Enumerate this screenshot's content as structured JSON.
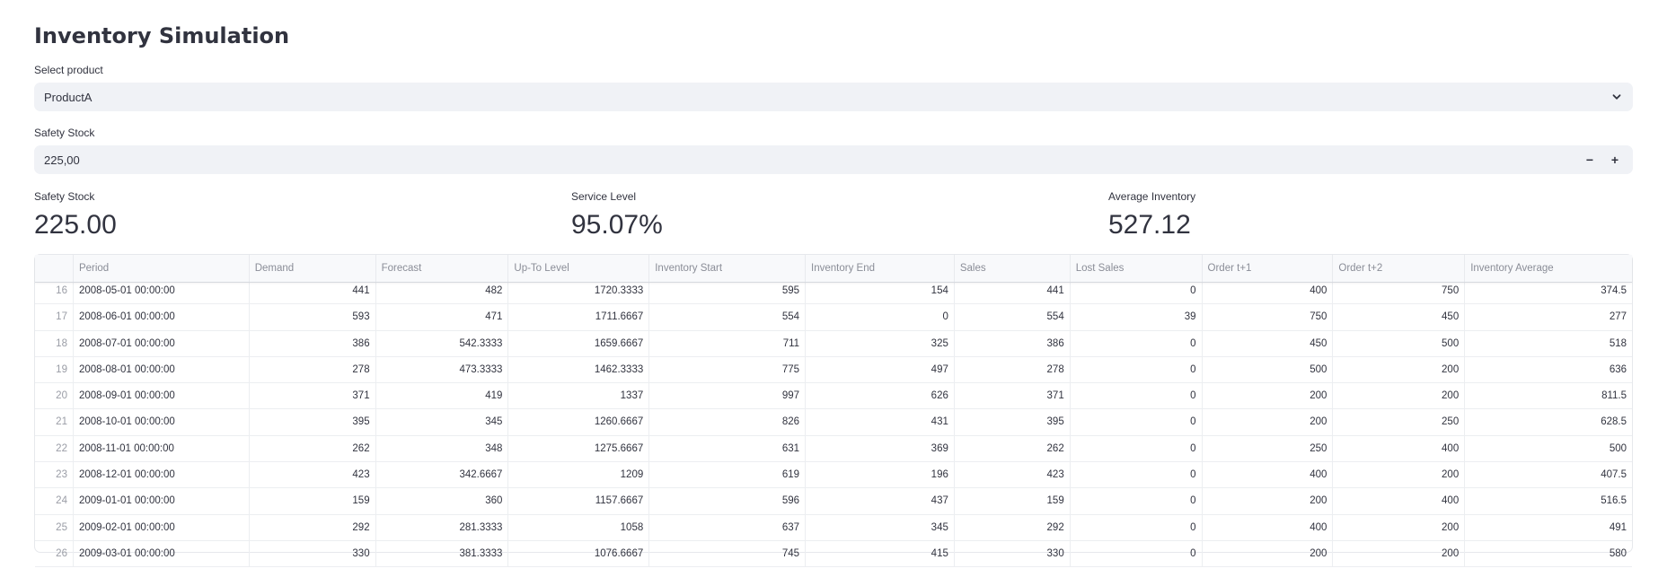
{
  "page": {
    "title": "Inventory Simulation"
  },
  "product_select": {
    "label": "Select product",
    "value": "ProductA",
    "icon": "chevron-down-icon"
  },
  "safety_stock_input": {
    "label": "Safety Stock",
    "value": "225,00",
    "decrement_label": "−",
    "increment_label": "+"
  },
  "metrics": [
    {
      "label": "Safety Stock",
      "value": "225.00"
    },
    {
      "label": "Service Level",
      "value": "95.07%"
    },
    {
      "label": "Average Inventory",
      "value": "527.12"
    }
  ],
  "table": {
    "columns": [
      "",
      "Period",
      "Demand",
      "Forecast",
      "Up-To Level",
      "Inventory Start",
      "Inventory End",
      "Sales",
      "Lost Sales",
      "Order t+1",
      "Order t+2",
      "Inventory Average"
    ],
    "rows": [
      [
        "16",
        "2008-05-01 00:00:00",
        "441",
        "482",
        "1720.3333",
        "595",
        "154",
        "441",
        "0",
        "400",
        "750",
        "374.5"
      ],
      [
        "17",
        "2008-06-01 00:00:00",
        "593",
        "471",
        "1711.6667",
        "554",
        "0",
        "554",
        "39",
        "750",
        "450",
        "277"
      ],
      [
        "18",
        "2008-07-01 00:00:00",
        "386",
        "542.3333",
        "1659.6667",
        "711",
        "325",
        "386",
        "0",
        "450",
        "500",
        "518"
      ],
      [
        "19",
        "2008-08-01 00:00:00",
        "278",
        "473.3333",
        "1462.3333",
        "775",
        "497",
        "278",
        "0",
        "500",
        "200",
        "636"
      ],
      [
        "20",
        "2008-09-01 00:00:00",
        "371",
        "419",
        "1337",
        "997",
        "626",
        "371",
        "0",
        "200",
        "200",
        "811.5"
      ],
      [
        "21",
        "2008-10-01 00:00:00",
        "395",
        "345",
        "1260.6667",
        "826",
        "431",
        "395",
        "0",
        "200",
        "250",
        "628.5"
      ],
      [
        "22",
        "2008-11-01 00:00:00",
        "262",
        "348",
        "1275.6667",
        "631",
        "369",
        "262",
        "0",
        "250",
        "400",
        "500"
      ],
      [
        "23",
        "2008-12-01 00:00:00",
        "423",
        "342.6667",
        "1209",
        "619",
        "196",
        "423",
        "0",
        "400",
        "200",
        "407.5"
      ],
      [
        "24",
        "2009-01-01 00:00:00",
        "159",
        "360",
        "1157.6667",
        "596",
        "437",
        "159",
        "0",
        "200",
        "400",
        "516.5"
      ],
      [
        "25",
        "2009-02-01 00:00:00",
        "292",
        "281.3333",
        "1058",
        "637",
        "345",
        "292",
        "0",
        "400",
        "200",
        "491"
      ],
      [
        "26",
        "2009-03-01 00:00:00",
        "330",
        "381.3333",
        "1076.6667",
        "745",
        "415",
        "330",
        "0",
        "200",
        "200",
        "580"
      ]
    ]
  }
}
